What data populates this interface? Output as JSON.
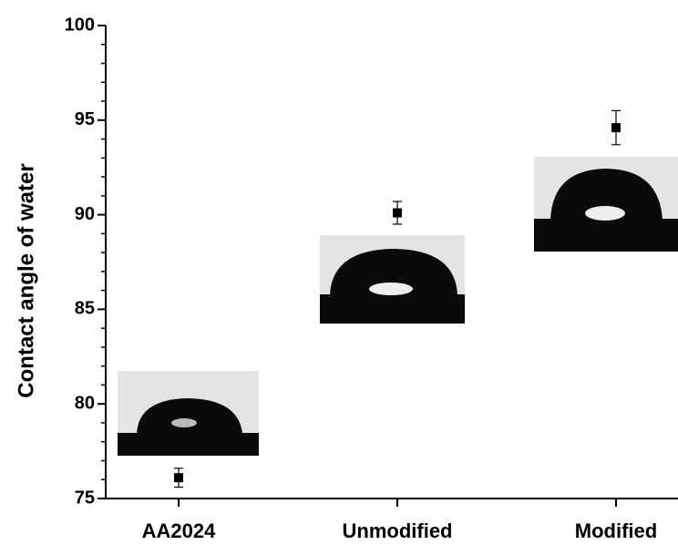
{
  "chart_data": {
    "type": "scatter",
    "y_label": "Contact angle of water",
    "categories": [
      "AA2024",
      "Unmodified",
      "Modified"
    ],
    "values": [
      76.1,
      90.1,
      94.6
    ],
    "errors": [
      0.5,
      0.6,
      0.9
    ],
    "color": "#000000",
    "ylim": [
      75,
      100
    ],
    "yticks": [
      75,
      80,
      85,
      90,
      95,
      100
    ],
    "minor_yticks": [
      76,
      77,
      78,
      79,
      81,
      82,
      83,
      84,
      86,
      87,
      88,
      89,
      91,
      92,
      93,
      94,
      96,
      97,
      98,
      99
    ]
  }
}
